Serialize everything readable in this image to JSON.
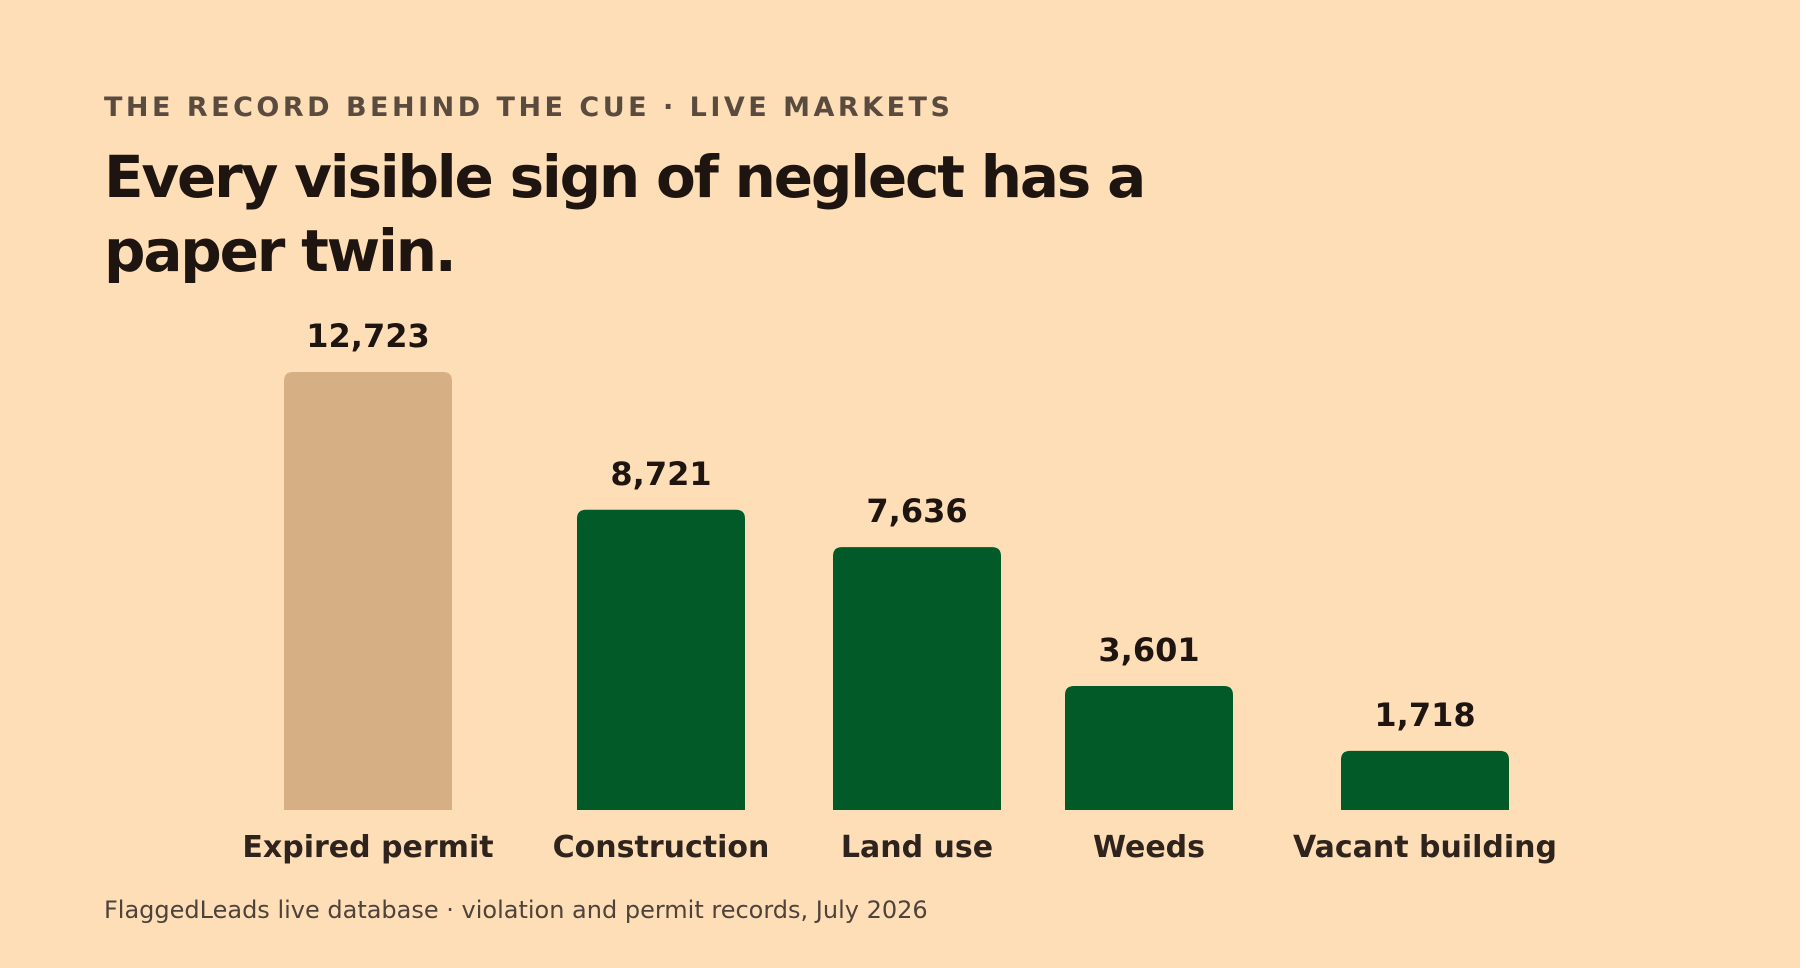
{
  "eyebrow": "THE RECORD BEHIND THE CUE · LIVE MARKETS",
  "title": "Every visible sign of neglect has a paper twin.",
  "footer": "FlaggedLeads live database · violation and permit records, July 2026",
  "colors": {
    "background": "#FEDEB7",
    "highlight_bar": "#D6AF85",
    "bar": "#015A27",
    "label_text": "#1E1410"
  },
  "chart_data": {
    "type": "bar",
    "title": "Every visible sign of neglect has a paper twin.",
    "categories": [
      "Expired permit",
      "Construction",
      "Land use",
      "Weeds",
      "Vacant building"
    ],
    "values": [
      12723,
      8721,
      7636,
      3601,
      1718
    ],
    "value_labels": [
      "12,723",
      "8,721",
      "7,636",
      "3,601",
      "1,718"
    ],
    "highlight": [
      "Expired permit"
    ],
    "xlabel": "",
    "ylabel": "",
    "grid": false,
    "legend": "none"
  }
}
